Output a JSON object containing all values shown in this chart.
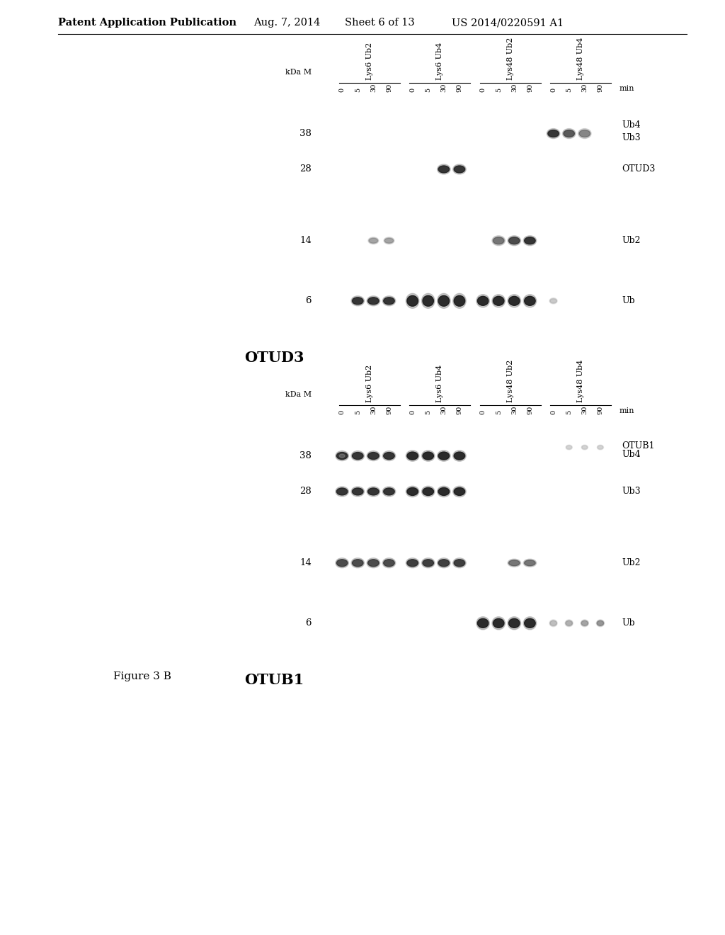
{
  "title_header": "Patent Application Publication",
  "header_date": "Aug. 7, 2014",
  "header_sheet": "Sheet 6 of 13",
  "header_patent": "US 2014/0220591 A1",
  "figure_label": "Figure 3 B",
  "panel1_title": "OTUD3",
  "panel2_title": "OTUB1",
  "kda_labels": [
    "38",
    "28",
    "14",
    "6"
  ],
  "group_labels": [
    "Lys6 Ub2",
    "Lys6 Ub4",
    "Lys48 Ub2",
    "Lys48 Ub4"
  ],
  "time_labels": [
    "0",
    "5",
    "30",
    "90"
  ],
  "time_label_word": "min",
  "right_labels_p1": [
    "Ub4",
    "Ub3",
    "OTUD3",
    "Ub2",
    "Ub"
  ],
  "right_labels_p2": [
    "OTUB1",
    "Ub4",
    "Ub3",
    "Ub2",
    "Ub"
  ],
  "bg_color": "#ffffff",
  "text_color": "#000000"
}
